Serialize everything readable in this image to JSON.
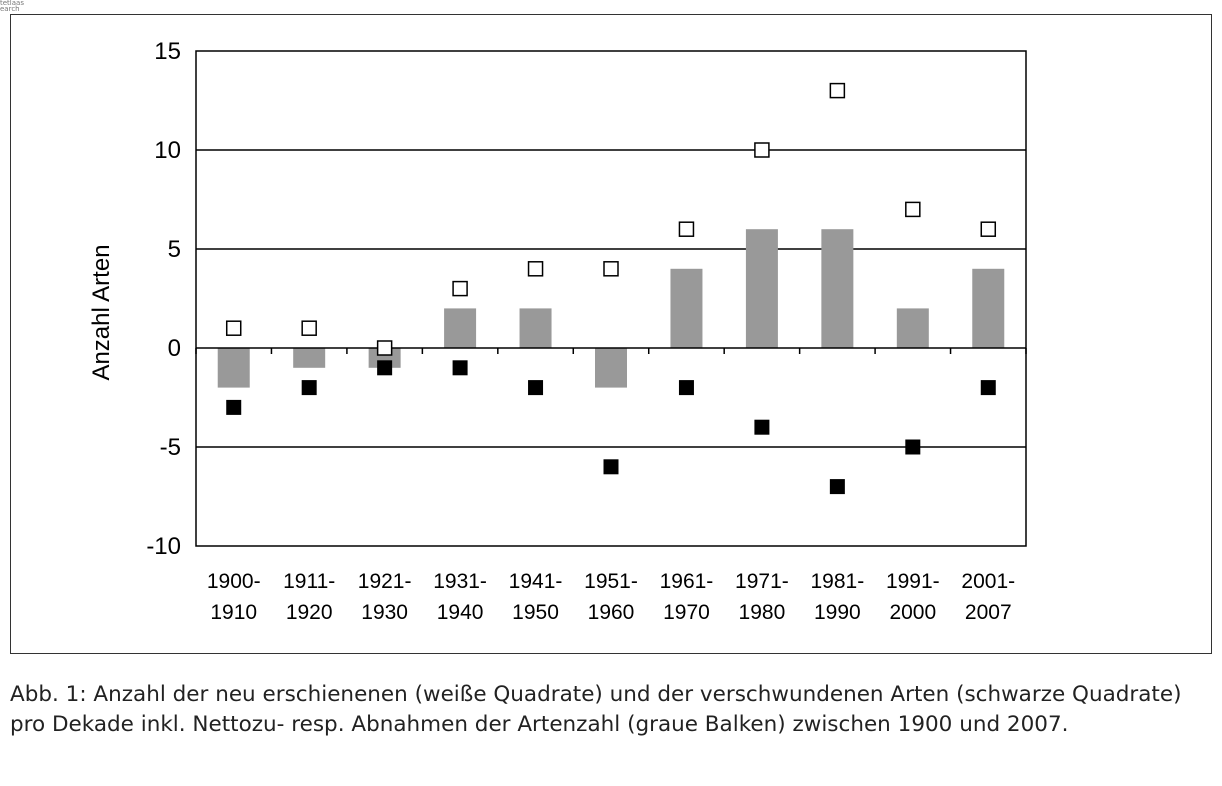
{
  "logo": {
    "line1": "tetlaas",
    "line2": "earch"
  },
  "figure": {
    "caption": "Abb. 1: Anzahl der neu erschienenen (weiße Quadrate) und der verschwundenen Arten (schwarze Quadrate) pro Dekade inkl. Nettozu- resp. Abnahmen der Artenzahl (graue Balken) zwischen 1900 und 2007."
  },
  "chart_data": {
    "type": "bar",
    "ylabel": "Anzahl Arten",
    "ylim": [
      -10,
      15
    ],
    "yticks": [
      -10,
      -5,
      0,
      5,
      10,
      15
    ],
    "ytick_labels": [
      "-10",
      "-5",
      "0",
      "5",
      "10",
      "15"
    ],
    "grid": "horizontal",
    "categories": [
      [
        "1900-",
        "1910"
      ],
      [
        "1911-",
        "1920"
      ],
      [
        "1921-",
        "1930"
      ],
      [
        "1931-",
        "1940"
      ],
      [
        "1941-",
        "1950"
      ],
      [
        "1951-",
        "1960"
      ],
      [
        "1961-",
        "1970"
      ],
      [
        "1971-",
        "1980"
      ],
      [
        "1981-",
        "1990"
      ],
      [
        "1991-",
        "2000"
      ],
      [
        "2001-",
        "2007"
      ]
    ],
    "series": [
      {
        "values": [
          -2,
          -1,
          -1,
          2,
          2,
          -2,
          4,
          6,
          6,
          2,
          4
        ],
        "color": "#999999",
        "marker": "bar"
      },
      {
        "values": [
          1,
          1,
          0,
          3,
          4,
          4,
          6,
          10,
          13,
          7,
          6
        ],
        "color": "#ffffff",
        "marker": "open-square"
      },
      {
        "values": [
          -3,
          -2,
          -1,
          -1,
          -2,
          -6,
          -2,
          -4,
          -7,
          -5,
          -2
        ],
        "color": "#000000",
        "marker": "filled-square"
      }
    ]
  }
}
